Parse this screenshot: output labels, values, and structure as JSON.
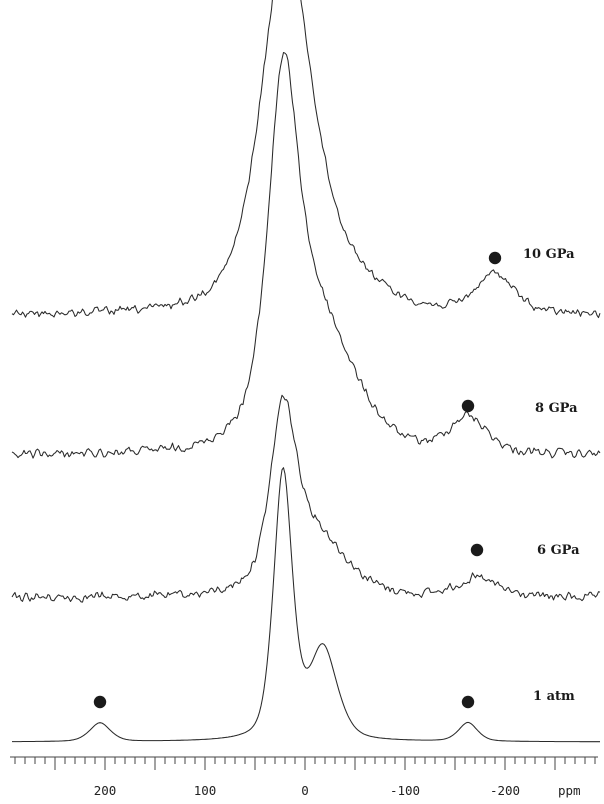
{
  "chart_data": {
    "type": "line",
    "title": "",
    "xlabel": "",
    "x_unit": "ppm",
    "ylabel": "",
    "xlim": [
      300,
      -300
    ],
    "x_reversed": true,
    "x_ticks": [
      200,
      100,
      0,
      -100,
      -200
    ],
    "x_tick_labels": [
      "200",
      "100",
      "0",
      "-100",
      "-200"
    ],
    "grid": false,
    "series": [
      {
        "name": "1 atm",
        "peaks": [
          {
            "center": 22,
            "relative_height": 1.0,
            "width": 10
          },
          {
            "center": -18,
            "relative_height": 0.34,
            "width": 15
          },
          {
            "center": 205,
            "relative_height": 0.07,
            "width": 11
          },
          {
            "center": -163,
            "relative_height": 0.07,
            "width": 10
          }
        ],
        "spinning_sideband_markers": [
          205,
          -163
        ]
      },
      {
        "name": "6 GPa",
        "peaks": [
          {
            "center": 22,
            "relative_height": 1.0,
            "width": 13
          },
          {
            "center": -5,
            "relative_height": 0.45,
            "width": 35
          },
          {
            "center": -172,
            "relative_height": 0.12,
            "width": 22
          }
        ],
        "spinning_sideband_markers": [
          -172
        ]
      },
      {
        "name": "8 GPa",
        "peaks": [
          {
            "center": 22,
            "relative_height": 1.0,
            "width": 15
          },
          {
            "center": -8,
            "relative_height": 0.5,
            "width": 40
          },
          {
            "center": -163,
            "relative_height": 0.12,
            "width": 20
          }
        ],
        "spinning_sideband_markers": [
          -163
        ]
      },
      {
        "name": "10 GPa",
        "peaks": [
          {
            "center": 20,
            "relative_height": 1.0,
            "width": 24
          },
          {
            "center": 0,
            "relative_height": 0.3,
            "width": 48
          },
          {
            "center": -190,
            "relative_height": 0.13,
            "width": 20
          }
        ],
        "spinning_sideband_markers": [
          -190
        ]
      }
    ]
  }
}
